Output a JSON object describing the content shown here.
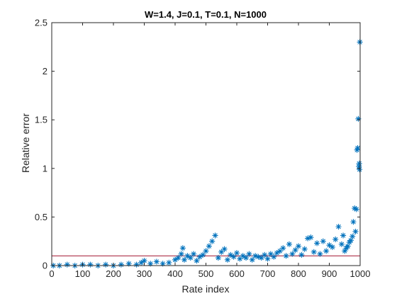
{
  "chart_data": {
    "type": "scatter",
    "title": "W=1.4, J=0.1, T=0.1, N=1000",
    "xlabel": "Rate index",
    "ylabel": "Relative error",
    "xlim": [
      0,
      1000
    ],
    "ylim": [
      0,
      2.5
    ],
    "xticks": [
      "0",
      "100",
      "200",
      "300",
      "400",
      "500",
      "600",
      "700",
      "800",
      "900",
      "1000"
    ],
    "yticks": [
      "0",
      "0.5",
      "1",
      "1.5",
      "2",
      "2.5"
    ],
    "grid": false,
    "box": true,
    "series": [
      {
        "marker": "asterisk",
        "color": "#0072BD",
        "x": [
          5,
          25,
          50,
          75,
          100,
          125,
          150,
          175,
          200,
          225,
          250,
          275,
          290,
          300,
          320,
          340,
          360,
          380,
          400,
          410,
          420,
          425,
          430,
          440,
          450,
          460,
          470,
          480,
          490,
          500,
          510,
          520,
          530,
          540,
          550,
          560,
          570,
          580,
          590,
          600,
          610,
          620,
          630,
          640,
          650,
          660,
          670,
          680,
          690,
          700,
          710,
          720,
          730,
          740,
          750,
          760,
          770,
          780,
          790,
          800,
          810,
          820,
          830,
          840,
          850,
          860,
          870,
          880,
          890,
          900,
          910,
          920,
          930,
          940,
          945,
          950,
          955,
          960,
          965,
          970,
          975,
          978,
          982,
          985,
          988,
          990,
          992,
          994,
          996,
          997,
          998,
          999
        ],
        "y": [
          0.0,
          0.0,
          0.01,
          0.0,
          0.01,
          0.01,
          0.0,
          0.01,
          0.0,
          0.01,
          0.02,
          0.01,
          0.03,
          0.05,
          0.02,
          0.04,
          0.02,
          0.03,
          0.06,
          0.08,
          0.12,
          0.18,
          0.06,
          0.1,
          0.08,
          0.12,
          0.05,
          0.09,
          0.11,
          0.15,
          0.2,
          0.25,
          0.31,
          0.08,
          0.14,
          0.17,
          0.06,
          0.11,
          0.09,
          0.13,
          0.07,
          0.1,
          0.08,
          0.12,
          0.06,
          0.1,
          0.09,
          0.08,
          0.11,
          0.07,
          0.12,
          0.09,
          0.13,
          0.15,
          0.18,
          0.1,
          0.22,
          0.12,
          0.16,
          0.2,
          0.11,
          0.17,
          0.28,
          0.29,
          0.14,
          0.23,
          0.12,
          0.25,
          0.15,
          0.21,
          0.19,
          0.27,
          0.4,
          0.22,
          0.31,
          0.15,
          0.18,
          0.2,
          0.24,
          0.26,
          0.3,
          0.45,
          0.59,
          0.35,
          0.58,
          1.19,
          1.21,
          1.51,
          1.02,
          1.05,
          0.99,
          2.3
        ]
      }
    ],
    "reference_line": {
      "y": 0.1,
      "color": "#A2142F"
    }
  }
}
